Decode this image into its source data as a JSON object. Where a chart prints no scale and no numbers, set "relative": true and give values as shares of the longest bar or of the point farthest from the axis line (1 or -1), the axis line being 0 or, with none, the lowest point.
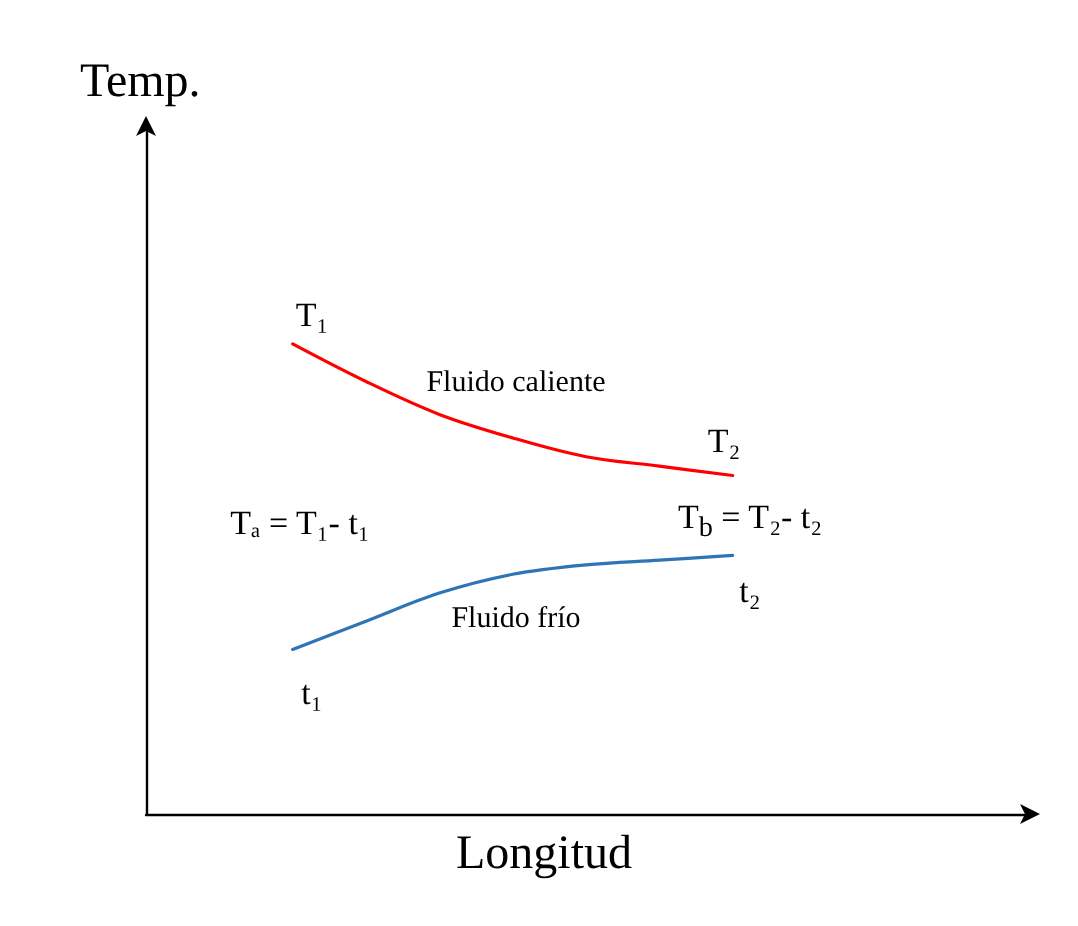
{
  "chart_data": {
    "type": "line",
    "relative": true,
    "xlabel": "Longitud",
    "ylabel": "Temp.",
    "categories": [
      null,
      null,
      null,
      null,
      null,
      null,
      null,
      null,
      null,
      null,
      null,
      null,
      null
    ],
    "series": [
      {
        "color": "#ff0000",
        "values": [
          null,
          null,
          1,
          0.92,
          0.85,
          0.8,
          0.76,
          0.74,
          0.72,
          null,
          null,
          null,
          null
        ]
      },
      {
        "color": "#2e75b6",
        "values": [
          null,
          null,
          0.35,
          0.41,
          0.47,
          0.51,
          0.53,
          0.54,
          0.55,
          null,
          null,
          null,
          null
        ]
      }
    ],
    "annotations": [
      "T₁",
      "Fluido caliente",
      "T₂",
      "Tₐ = T₁- t₁",
      "T$_{b}$ = T₂- t₂",
      "t₂",
      "Fluido frío",
      "t₁"
    ],
    "grid": false,
    "marker": "none",
    "line_style": "solid"
  }
}
